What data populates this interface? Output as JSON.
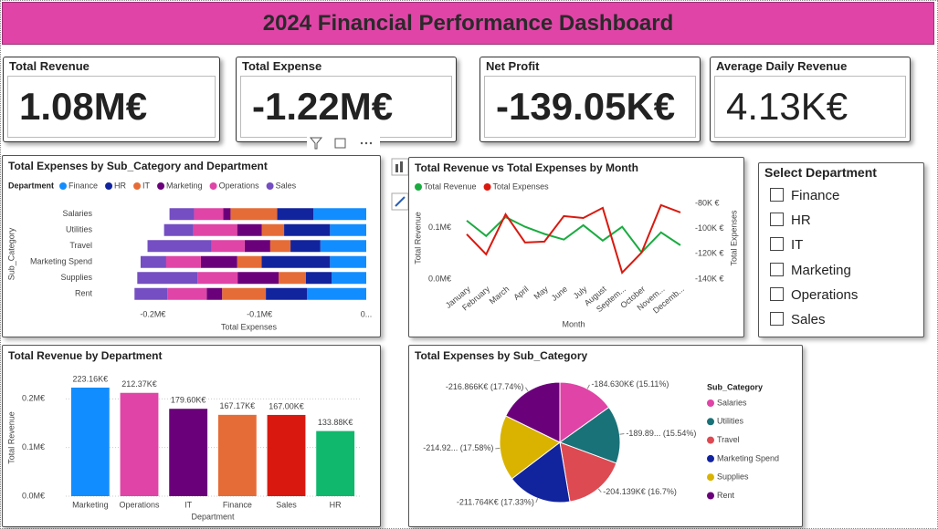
{
  "header": {
    "title": "2024 Financial Performance Dashboard"
  },
  "cards": [
    {
      "label": "Total Revenue",
      "value": "1.08M€"
    },
    {
      "label": "Total Expense",
      "value": "-1.22M€"
    },
    {
      "label": "Net Profit",
      "value": "-139.05K€"
    },
    {
      "label": "Average Daily Revenue",
      "value": "4.13K€"
    }
  ],
  "slicer": {
    "title": "Select Department",
    "options": [
      "Finance",
      "HR",
      "IT",
      "Marketing",
      "Operations",
      "Sales"
    ]
  },
  "chart_data": [
    {
      "type": "bar",
      "orientation": "horizontal",
      "stacked": true,
      "title": "Total Expenses by Sub_Category and Department",
      "legend_title": "Department",
      "x_label": "Total Expenses",
      "y_label": "Sub_Category",
      "categories": [
        "Salaries",
        "Utilities",
        "Travel",
        "Marketing Spend",
        "Supplies",
        "Rent"
      ],
      "series": [
        {
          "name": "Finance",
          "color": "#118dff",
          "values": [
            -49600,
            -34000,
            -43000,
            -34000,
            -32500,
            -55600
          ]
        },
        {
          "name": "HR",
          "color": "#12239e",
          "values": [
            -34000,
            -43000,
            -28000,
            -64000,
            -24000,
            -38500
          ]
        },
        {
          "name": "IT",
          "color": "#e66c37",
          "values": [
            -43600,
            -21000,
            -19000,
            -23000,
            -25600,
            -41000
          ]
        },
        {
          "name": "Marketing",
          "color": "#6b007b",
          "values": [
            -6800,
            -23000,
            -24000,
            -34000,
            -38500,
            -14500
          ]
        },
        {
          "name": "Operations",
          "color": "#e044a7",
          "values": [
            -27400,
            -41000,
            -31000,
            -32500,
            -37600,
            -36800
          ]
        },
        {
          "name": "Sales",
          "color": "#744ec2",
          "values": [
            -23000,
            -27500,
            -60000,
            -24000,
            -56400,
            -30800
          ]
        }
      ],
      "xlim": [
        -220000,
        0
      ],
      "xticks": [
        {
          "value": -200000,
          "label": "-0.2M€"
        },
        {
          "value": -100000,
          "label": "-0.1M€"
        },
        {
          "value": 0,
          "label": "0..."
        }
      ]
    },
    {
      "type": "line",
      "title": "Total Revenue vs Total Expenses by Month",
      "x_label": "Month",
      "y_label": "Total Revenue",
      "y2_label": "Total Expenses",
      "categories": [
        "January",
        "February",
        "March",
        "April",
        "May",
        "June",
        "July",
        "August",
        "Septem...",
        "October",
        "Novem...",
        "Decemb..."
      ],
      "series": [
        {
          "name": "Total Revenue",
          "color": "#1aab40",
          "values": [
            114000,
            84000,
            121000,
            102000,
            88000,
            77000,
            105000,
            75000,
            102000,
            52000,
            91000,
            66000
          ]
        },
        {
          "name": "Total Expenses",
          "color": "#d9190f",
          "axis": "y2",
          "values": [
            -104500,
            -120400,
            -88700,
            -111000,
            -110300,
            -90100,
            -91600,
            -83600,
            -134900,
            -119000,
            -81400,
            -87200
          ]
        }
      ],
      "ylim": [
        0,
        160000
      ],
      "yticks": [
        {
          "value": 0,
          "label": "0.0M€"
        },
        {
          "value": 100000,
          "label": "0.1M€"
        }
      ],
      "y2lim": [
        -140000,
        -75000
      ],
      "y2ticks": [
        {
          "value": -140000,
          "label": "-140K €"
        },
        {
          "value": -120000,
          "label": "-120K €"
        },
        {
          "value": -100000,
          "label": "-100K €"
        },
        {
          "value": -80000,
          "label": "-80K €"
        }
      ]
    },
    {
      "type": "bar",
      "title": "Total Revenue by Department",
      "x_label": "Department",
      "y_label": "Total Revenue",
      "categories": [
        "Marketing",
        "Operations",
        "IT",
        "Finance",
        "Sales",
        "HR"
      ],
      "values": [
        223160,
        212370,
        179600,
        167170,
        167000,
        133880
      ],
      "value_labels": [
        "223.16K€",
        "212.37K€",
        "179.60K€",
        "167.17K€",
        "167.00K€",
        "133.88K€"
      ],
      "colors": [
        "#118dff",
        "#e044a7",
        "#6b007b",
        "#e66c37",
        "#d9190f",
        "#0fb86c"
      ],
      "ylim": [
        0,
        240000
      ],
      "yticks": [
        {
          "value": 0,
          "label": "0.0M€"
        },
        {
          "value": 100000,
          "label": "0.1M€"
        },
        {
          "value": 200000,
          "label": "0.2M€"
        }
      ],
      "grid": true
    },
    {
      "type": "pie",
      "title": "Total Expenses by Sub_Category",
      "legend_title": "Sub_Category",
      "categories": [
        "Salaries",
        "Utilities",
        "Travel",
        "Marketing Spend",
        "Supplies",
        "Rent"
      ],
      "values": [
        -184630,
        -189890,
        -204139,
        -211764,
        -214920,
        -216866
      ],
      "value_labels": [
        "-184.630K€ (15.11%)",
        "-189.89... (15.54%)",
        "-204.139K€ (16.7%)",
        "-211.764K€ (17.33%)",
        "-214.92... (17.58%)",
        "-216.866K€ (17.74%)"
      ],
      "colors": [
        "#e044a7",
        "#197278",
        "#dd4a52",
        "#12239e",
        "#d9b300",
        "#6b007b"
      ]
    }
  ]
}
